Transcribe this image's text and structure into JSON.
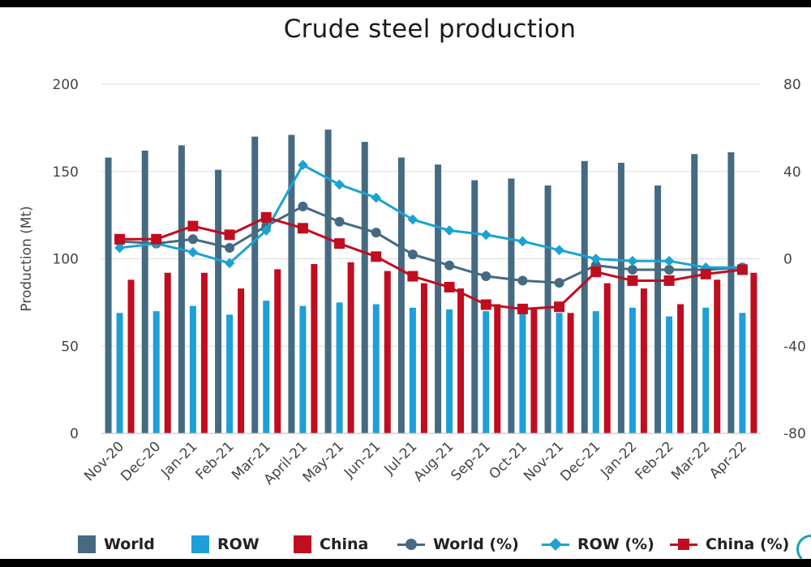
{
  "chart_data": {
    "type": "bar",
    "title": "Crude steel production",
    "ylabel": "Production (Mt)",
    "ylabel_right": "",
    "ylim": [
      0,
      200
    ],
    "ylim_right": [
      -80,
      80
    ],
    "yticks": [
      "0",
      "50",
      "100",
      "150",
      "200"
    ],
    "yticks_right": [
      "-80",
      "-40",
      "0",
      "40",
      "80"
    ],
    "categories": [
      "Nov-20",
      "Dec-20",
      "Jan-21",
      "Feb-21",
      "Mar-21",
      "April-21",
      "May-21",
      "Jun-21",
      "Jul-21",
      "Aug-21",
      "Sep-21",
      "Oct-21",
      "Nov-21",
      "Dec-21",
      "Jan-22",
      "Feb-22",
      "Mar-22",
      "Apr-22"
    ],
    "grid": true,
    "legend_position": "bottom",
    "series": [
      {
        "name": "World",
        "kind": "bar",
        "axis": "left",
        "color": "#456a82",
        "values": [
          158,
          162,
          165,
          151,
          170,
          171,
          174,
          167,
          158,
          154,
          145,
          146,
          142,
          156,
          155,
          142,
          160,
          161
        ]
      },
      {
        "name": "ROW",
        "kind": "bar",
        "axis": "left",
        "color": "#1e9fd8",
        "values": [
          69,
          70,
          73,
          68,
          76,
          73,
          75,
          74,
          72,
          71,
          70,
          69,
          69,
          70,
          72,
          67,
          72,
          69
        ]
      },
      {
        "name": "China",
        "kind": "bar",
        "axis": "left",
        "color": "#c00d1f",
        "values": [
          88,
          92,
          92,
          83,
          94,
          97,
          98,
          93,
          86,
          83,
          74,
          72,
          69,
          86,
          83,
          74,
          88,
          92
        ]
      },
      {
        "name": "World (%)",
        "kind": "line",
        "axis": "right",
        "color": "#456a82",
        "marker": "circle",
        "values": [
          8,
          7,
          9,
          5,
          15,
          24,
          17,
          12,
          2,
          -3,
          -8,
          -10,
          -11,
          -3,
          -5,
          -5,
          -5,
          -4
        ]
      },
      {
        "name": "ROW (%)",
        "kind": "line",
        "axis": "right",
        "color": "#1aa3d2",
        "marker": "diamond",
        "values": [
          5,
          7,
          3,
          -2,
          13,
          43,
          34,
          28,
          18,
          13,
          11,
          8,
          4,
          0,
          -1,
          -1,
          -4,
          -4
        ]
      },
      {
        "name": "China (%)",
        "kind": "line",
        "axis": "right",
        "color": "#c00d1f",
        "marker": "square",
        "values": [
          9,
          9,
          15,
          11,
          19,
          14,
          7,
          1,
          -8,
          -13,
          -21,
          -23,
          -22,
          -6,
          -10,
          -10,
          -7,
          -5
        ]
      }
    ]
  }
}
